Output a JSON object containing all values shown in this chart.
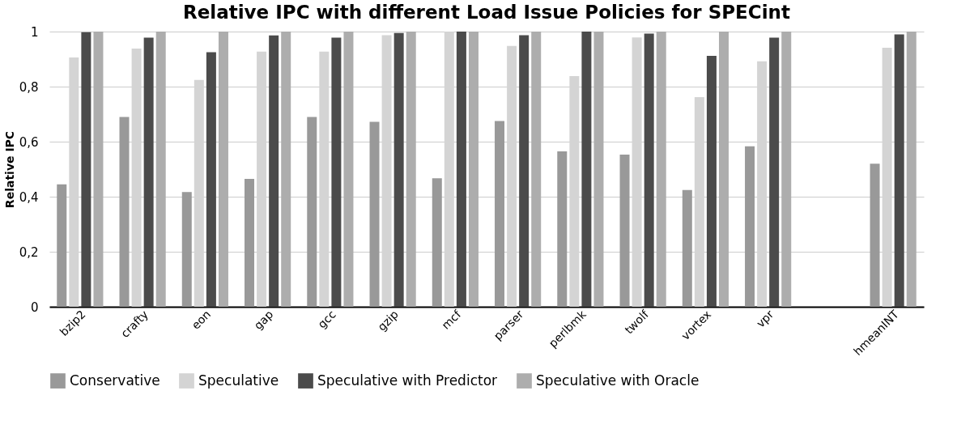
{
  "chart_data": {
    "type": "bar",
    "title": "Relative IPC with different Load Issue Policies for SPECint",
    "ylabel": "Relative IPC",
    "categories": [
      "bzip2",
      "crafty",
      "eon",
      "gap",
      "gcc",
      "gzip",
      "mcf",
      "parser",
      "perlbmk",
      "twolf",
      "vortex",
      "vpr",
      null,
      "hmeanINT"
    ],
    "series": [
      {
        "name": "Conservative",
        "color": "#999999",
        "values": [
          0.445,
          0.69,
          0.417,
          0.465,
          0.69,
          0.672,
          0.467,
          0.675,
          0.565,
          0.553,
          0.424,
          0.583,
          null,
          0.52
        ]
      },
      {
        "name": "Speculative",
        "color": "#d4d4d4",
        "values": [
          0.906,
          0.938,
          0.824,
          0.927,
          0.927,
          0.987,
          1.0,
          0.948,
          0.838,
          0.979,
          0.762,
          0.892,
          null,
          0.941
        ]
      },
      {
        "name": "Speculative with Predictor",
        "color": "#4b4b4b",
        "values": [
          0.998,
          0.978,
          0.925,
          0.986,
          0.978,
          0.995,
          1.0,
          0.987,
          1.0,
          0.993,
          0.912,
          0.978,
          null,
          0.99
        ]
      },
      {
        "name": "Speculative with Oracle",
        "color": "#adadad",
        "values": [
          1,
          1,
          1,
          1,
          1,
          1,
          1,
          1,
          1,
          1,
          1,
          1,
          null,
          1
        ]
      }
    ],
    "ylim": [
      0,
      1
    ],
    "yticks": [
      0,
      {
        "value": 0.2,
        "label": "0,2"
      },
      {
        "value": 0.4,
        "label": "0,4"
      },
      {
        "value": 0.6,
        "label": "0,6"
      },
      {
        "value": 0.8,
        "label": "0,8"
      },
      1
    ],
    "grid": "y",
    "legend": "bottom"
  }
}
